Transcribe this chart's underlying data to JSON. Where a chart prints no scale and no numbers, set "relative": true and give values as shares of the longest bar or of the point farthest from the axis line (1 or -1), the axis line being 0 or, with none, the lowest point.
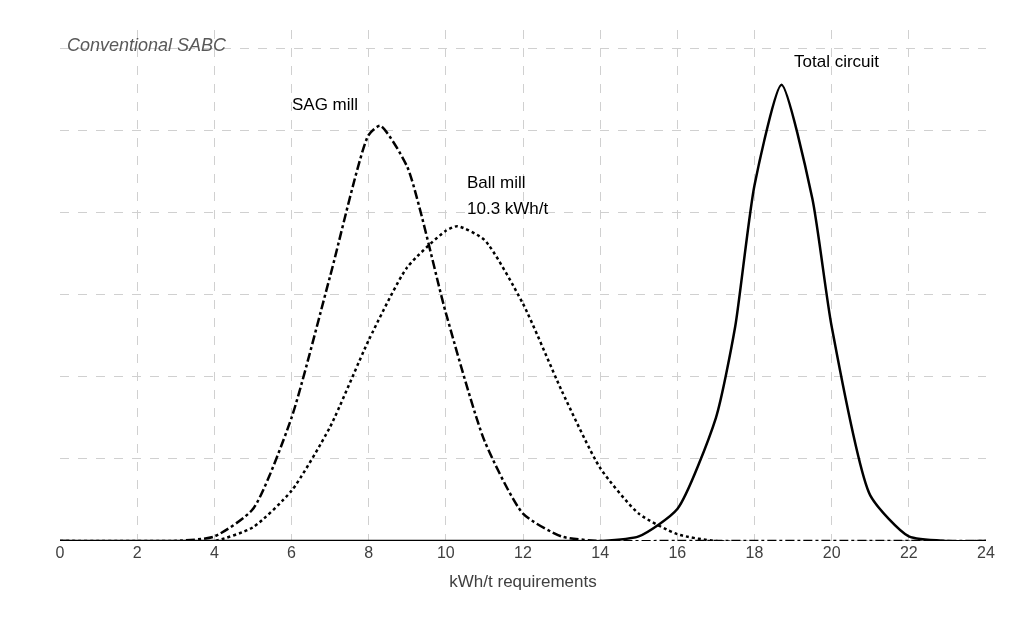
{
  "chart_data": {
    "type": "line",
    "relative": true,
    "xlabel": "kWh/t requirements",
    "xlim": [
      0,
      24
    ],
    "xticks": [
      0,
      2,
      4,
      6,
      8,
      10,
      12,
      14,
      16,
      18,
      20,
      22,
      24
    ],
    "grid": true,
    "legend": false,
    "annotations": [
      "Conventional SABC",
      {
        "text": "10.3 kWh/t",
        "x": 10.3,
        "y": 0.69
      }
    ],
    "series": [
      {
        "name": "SAG mill",
        "color": "#000000",
        "line_style": "dashdot",
        "x": [
          0,
          3,
          4,
          5,
          6,
          7,
          8,
          8.3,
          9,
          10,
          11,
          12,
          13,
          14,
          16,
          24
        ],
        "values": [
          0,
          0,
          0.01,
          0.07,
          0.27,
          0.58,
          0.89,
          0.91,
          0.82,
          0.5,
          0.22,
          0.06,
          0.01,
          0,
          0,
          0
        ]
      },
      {
        "name": "Ball mill",
        "color": "#000000",
        "line_style": "dotted",
        "x": [
          0,
          3,
          4,
          5,
          6,
          7,
          8,
          9,
          10,
          10.3,
          11,
          12,
          13,
          14,
          15,
          16,
          17,
          24
        ],
        "values": [
          0,
          0,
          0,
          0.03,
          0.11,
          0.25,
          0.44,
          0.6,
          0.68,
          0.69,
          0.66,
          0.52,
          0.33,
          0.16,
          0.06,
          0.015,
          0,
          0
        ]
      },
      {
        "name": "Total circuit",
        "color": "#000000",
        "line_style": "solid",
        "x": [
          0,
          13,
          14,
          15,
          16,
          17,
          17.5,
          18,
          18.7,
          19.5,
          20,
          21,
          22,
          23,
          24
        ],
        "values": [
          0,
          0,
          0,
          0.01,
          0.07,
          0.27,
          0.47,
          0.78,
          1.0,
          0.75,
          0.47,
          0.1,
          0.01,
          0,
          0
        ]
      }
    ]
  }
}
